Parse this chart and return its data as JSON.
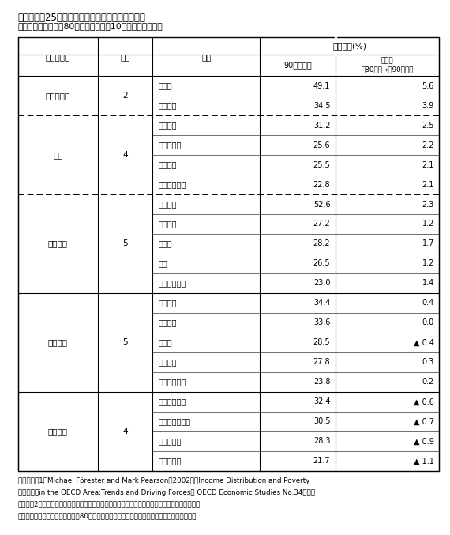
{
  "title1": "第３－２－25表　先進国における所得格差の動き",
  "title2": "　　　約半数の国ょ80年代半ばからの10年間に格差は拡大",
  "gini_header": "ジニ係数(%)",
  "col_header0": "格差の動き",
  "col_header1": "国数",
  "col_header2": "国名",
  "col_header3": "90年代半ば",
  "col_header4": "変化幅\n（80年代→）90年代）",
  "sections": [
    {
      "label": "大きく拡大",
      "count": "2",
      "countries": [
        "トルコ",
        "イタリア"
      ],
      "values": [
        "49.1",
        "34.5"
      ],
      "changes": [
        "5.6",
        "3.9"
      ],
      "change_neg": [
        false,
        false
      ],
      "dotted_bottom": true
    },
    {
      "label": "拡大",
      "count": "4",
      "countries": [
        "イギリス",
        "ノルウェー",
        "オランダ",
        "フィンランド"
      ],
      "values": [
        "31.2",
        "25.6",
        "25.5",
        "22.8"
      ],
      "changes": [
        "2.5",
        "2.2",
        "2.1",
        "2.1"
      ],
      "change_neg": [
        false,
        false,
        false,
        false
      ],
      "dotted_bottom": true
    },
    {
      "label": "少し拡大",
      "count": "5",
      "countries": [
        "メキシコ",
        "ベルギー",
        "ドイツ",
        "日本",
        "スウェーデン"
      ],
      "values": [
        "52.6",
        "27.2",
        "28.2",
        "26.5",
        "23.0"
      ],
      "changes": [
        "2.3",
        "1.2",
        "1.7",
        "1.2",
        "1.4"
      ],
      "change_neg": [
        false,
        false,
        false,
        false,
        false
      ],
      "dotted_bottom": false
    },
    {
      "label": "変化なし",
      "count": "5",
      "countries": [
        "アメリカ",
        "ギリシャ",
        "カナダ",
        "フランス",
        "オーストリア"
      ],
      "values": [
        "34.4",
        "33.6",
        "28.5",
        "27.8",
        "23.8"
      ],
      "changes": [
        "0.4",
        "0.0",
        "0.4",
        "0.3",
        "0.2"
      ],
      "change_neg": [
        false,
        false,
        true,
        false,
        false
      ],
      "dotted_bottom": false
    },
    {
      "label": "少し低下",
      "count": "4",
      "countries": [
        "アイルランド",
        "オーストラリア",
        "ハンガリー",
        "デンマーク"
      ],
      "values": [
        "32.4",
        "30.5",
        "28.3",
        "21.7"
      ],
      "changes": [
        "0.6",
        "0.7",
        "0.9",
        "1.1"
      ],
      "change_neg": [
        true,
        true,
        true,
        true
      ],
      "dotted_bottom": false
    }
  ],
  "footnote1": "（備考）　1．Michael Förester and Mark Pearson（2002）「Income Distribution and Poverty",
  "footnote2": "　　　　　in the OECD Area;Trends and Driving Forces」 OECD Economic Studies No.34より。",
  "footnote3": "　　　　2．ジニ係数は数値が大きいほど所得分布が不平等であることを示す。格差の動きの分類",
  "footnote4": "　　　　　は、変化幅ではなく、80年代半ばのジニ係数に対する変化の比率に基づいている。"
}
